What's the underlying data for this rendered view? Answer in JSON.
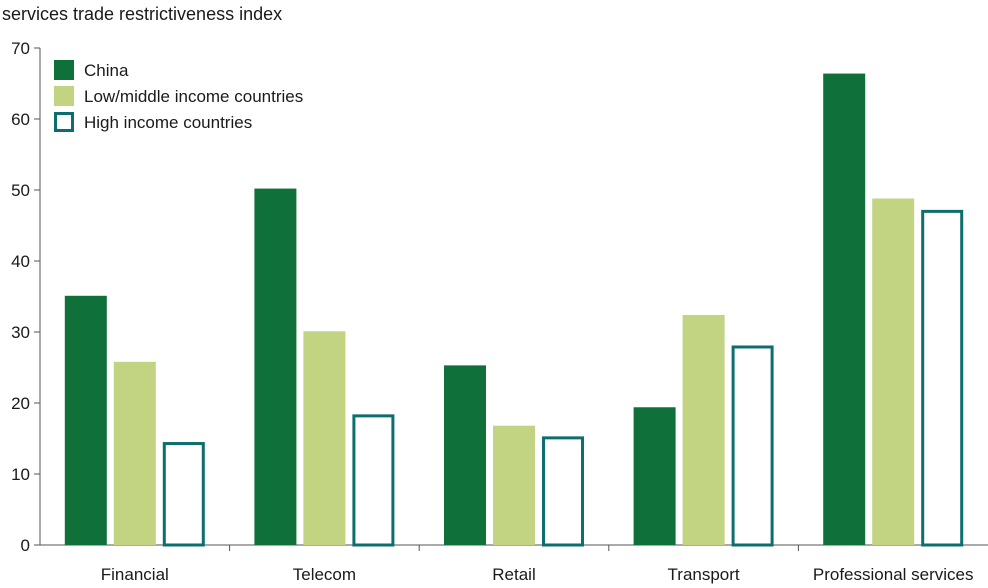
{
  "chart_data": {
    "type": "bar",
    "title": "",
    "ylabel": "services trade restrictiveness index",
    "xlabel": "",
    "ylim": [
      0,
      70
    ],
    "yticks": [
      0,
      10,
      20,
      30,
      40,
      50,
      60,
      70
    ],
    "grid": false,
    "legend_position": "top-left",
    "categories": [
      "Financial",
      "Telecom",
      "Retail",
      "Transport",
      "Professional services"
    ],
    "series": [
      {
        "name": "China",
        "values": [
          35.1,
          50.2,
          25.3,
          19.4,
          66.4
        ],
        "color": "#0f7139",
        "style": "filled"
      },
      {
        "name": "Low/middle income countries",
        "values": [
          25.8,
          30.1,
          16.8,
          32.4,
          48.8
        ],
        "color": "#c2d382",
        "style": "filled"
      },
      {
        "name": "High income countries",
        "values": [
          14.5,
          18.4,
          15.3,
          28.1,
          47.2
        ],
        "color": "#0e6e6e",
        "style": "outline"
      }
    ]
  }
}
